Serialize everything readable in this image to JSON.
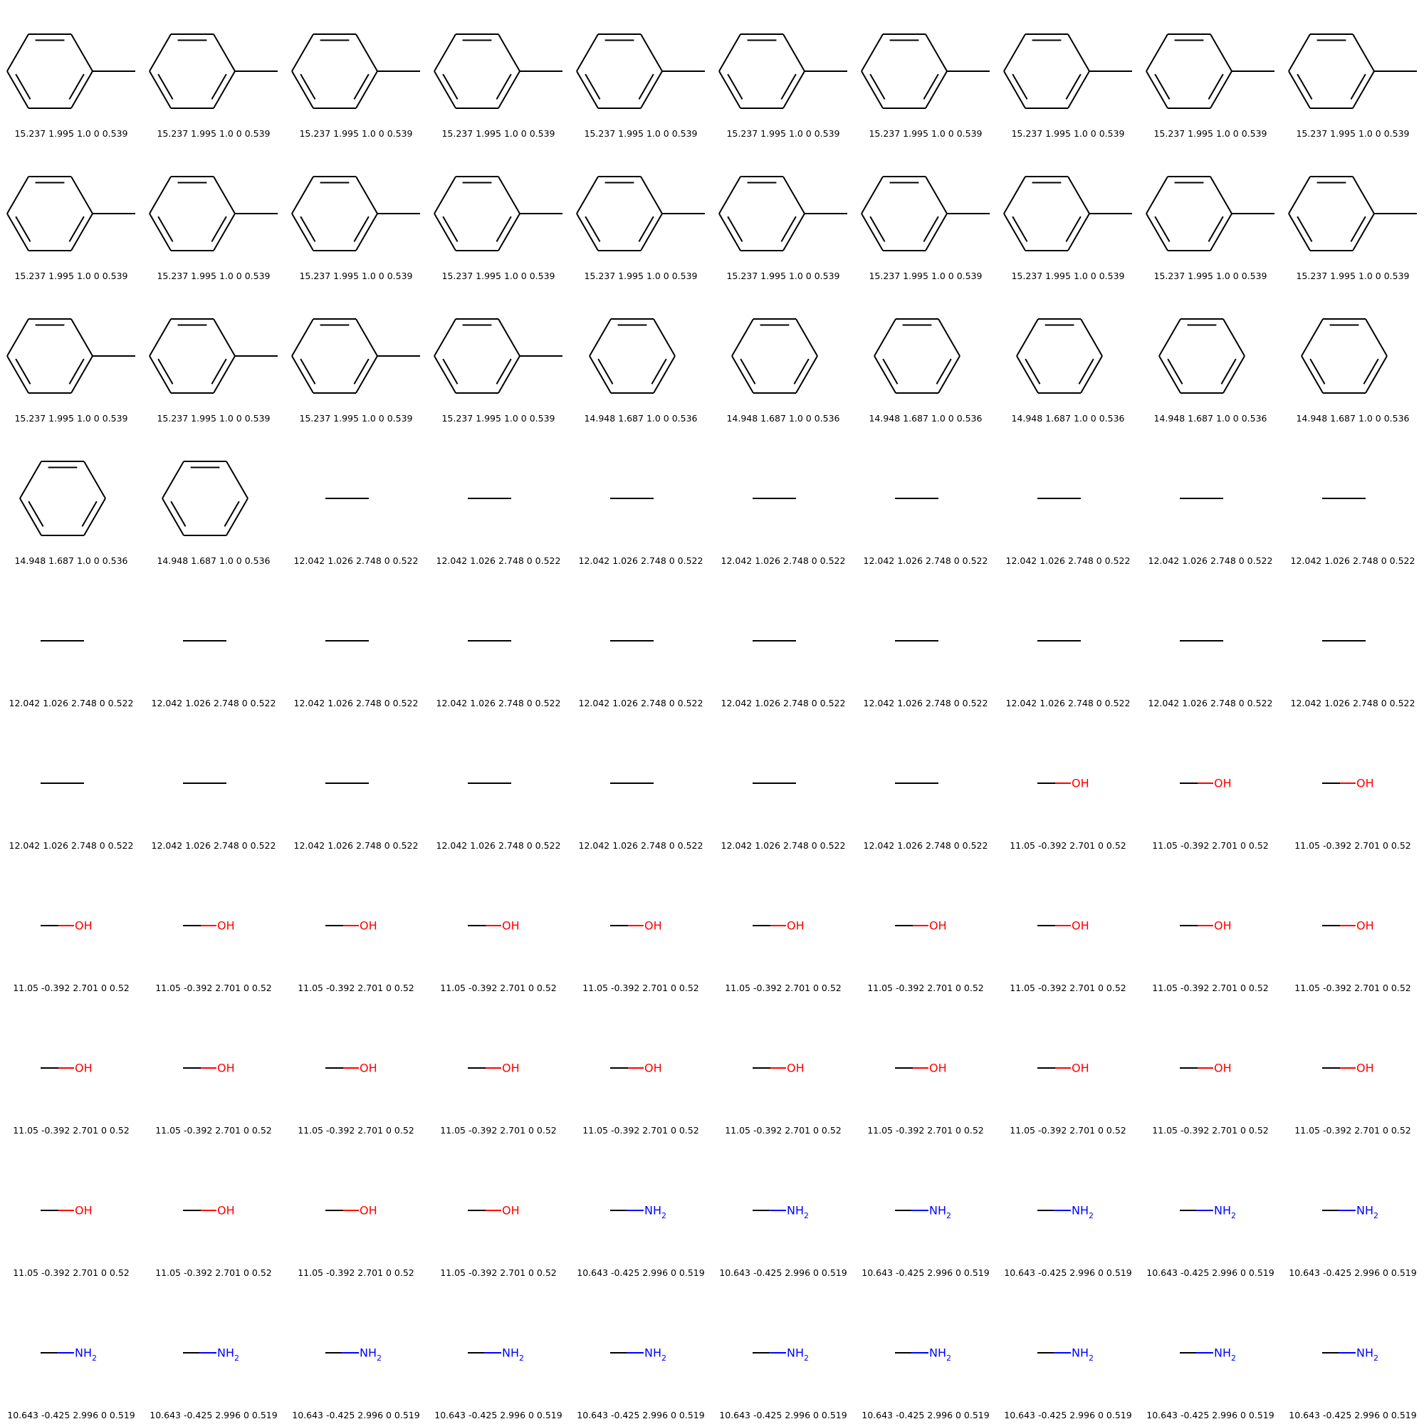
{
  "molecule_types": {
    "toluene": {
      "label": ""
    },
    "benzene": {
      "label": ""
    },
    "ethane": {
      "label": ""
    },
    "methanol": {
      "label": "OH",
      "label_color": "#ff0000"
    },
    "methylamine": {
      "label": "NH",
      "subscript": "2",
      "label_color": "#0000ff"
    }
  },
  "colors": {
    "bond": "#000000",
    "oxygen": "#ff0000",
    "nitrogen": "#0000ff",
    "caption": "#000000"
  },
  "captions": {
    "toluene": "15.237 1.995 1.0 0 0.539",
    "benzene": "14.948 1.687 1.0 0 0.536",
    "ethane": "12.042 1.026 2.748 0 0.522",
    "methanol": "11.05 -0.392 2.701 0 0.52",
    "methylamine": "10.643 -0.425 2.996 0 0.519"
  },
  "cells": [
    {
      "type": "toluene",
      "caption": "15.237 1.995 1.0 0 0.539"
    },
    {
      "type": "toluene",
      "caption": "15.237 1.995 1.0 0 0.539"
    },
    {
      "type": "toluene",
      "caption": "15.237 1.995 1.0 0 0.539"
    },
    {
      "type": "toluene",
      "caption": "15.237 1.995 1.0 0 0.539"
    },
    {
      "type": "toluene",
      "caption": "15.237 1.995 1.0 0 0.539"
    },
    {
      "type": "toluene",
      "caption": "15.237 1.995 1.0 0 0.539"
    },
    {
      "type": "toluene",
      "caption": "15.237 1.995 1.0 0 0.539"
    },
    {
      "type": "toluene",
      "caption": "15.237 1.995 1.0 0 0.539"
    },
    {
      "type": "toluene",
      "caption": "15.237 1.995 1.0 0 0.539"
    },
    {
      "type": "toluene",
      "caption": "15.237 1.995 1.0 0 0.539"
    },
    {
      "type": "toluene",
      "caption": "15.237 1.995 1.0 0 0.539"
    },
    {
      "type": "toluene",
      "caption": "15.237 1.995 1.0 0 0.539"
    },
    {
      "type": "toluene",
      "caption": "15.237 1.995 1.0 0 0.539"
    },
    {
      "type": "toluene",
      "caption": "15.237 1.995 1.0 0 0.539"
    },
    {
      "type": "toluene",
      "caption": "15.237 1.995 1.0 0 0.539"
    },
    {
      "type": "toluene",
      "caption": "15.237 1.995 1.0 0 0.539"
    },
    {
      "type": "toluene",
      "caption": "15.237 1.995 1.0 0 0.539"
    },
    {
      "type": "toluene",
      "caption": "15.237 1.995 1.0 0 0.539"
    },
    {
      "type": "toluene",
      "caption": "15.237 1.995 1.0 0 0.539"
    },
    {
      "type": "toluene",
      "caption": "15.237 1.995 1.0 0 0.539"
    },
    {
      "type": "toluene",
      "caption": "15.237 1.995 1.0 0 0.539"
    },
    {
      "type": "toluene",
      "caption": "15.237 1.995 1.0 0 0.539"
    },
    {
      "type": "toluene",
      "caption": "15.237 1.995 1.0 0 0.539"
    },
    {
      "type": "toluene",
      "caption": "15.237 1.995 1.0 0 0.539"
    },
    {
      "type": "benzene",
      "caption": "14.948 1.687 1.0 0 0.536"
    },
    {
      "type": "benzene",
      "caption": "14.948 1.687 1.0 0 0.536"
    },
    {
      "type": "benzene",
      "caption": "14.948 1.687 1.0 0 0.536"
    },
    {
      "type": "benzene",
      "caption": "14.948 1.687 1.0 0 0.536"
    },
    {
      "type": "benzene",
      "caption": "14.948 1.687 1.0 0 0.536"
    },
    {
      "type": "benzene",
      "caption": "14.948 1.687 1.0 0 0.536"
    },
    {
      "type": "benzene",
      "caption": "14.948 1.687 1.0 0 0.536"
    },
    {
      "type": "benzene",
      "caption": "14.948 1.687 1.0 0 0.536"
    },
    {
      "type": "ethane",
      "caption": "12.042 1.026 2.748 0 0.522"
    },
    {
      "type": "ethane",
      "caption": "12.042 1.026 2.748 0 0.522"
    },
    {
      "type": "ethane",
      "caption": "12.042 1.026 2.748 0 0.522"
    },
    {
      "type": "ethane",
      "caption": "12.042 1.026 2.748 0 0.522"
    },
    {
      "type": "ethane",
      "caption": "12.042 1.026 2.748 0 0.522"
    },
    {
      "type": "ethane",
      "caption": "12.042 1.026 2.748 0 0.522"
    },
    {
      "type": "ethane",
      "caption": "12.042 1.026 2.748 0 0.522"
    },
    {
      "type": "ethane",
      "caption": "12.042 1.026 2.748 0 0.522"
    },
    {
      "type": "ethane",
      "caption": "12.042 1.026 2.748 0 0.522"
    },
    {
      "type": "ethane",
      "caption": "12.042 1.026 2.748 0 0.522"
    },
    {
      "type": "ethane",
      "caption": "12.042 1.026 2.748 0 0.522"
    },
    {
      "type": "ethane",
      "caption": "12.042 1.026 2.748 0 0.522"
    },
    {
      "type": "ethane",
      "caption": "12.042 1.026 2.748 0 0.522"
    },
    {
      "type": "ethane",
      "caption": "12.042 1.026 2.748 0 0.522"
    },
    {
      "type": "ethane",
      "caption": "12.042 1.026 2.748 0 0.522"
    },
    {
      "type": "ethane",
      "caption": "12.042 1.026 2.748 0 0.522"
    },
    {
      "type": "ethane",
      "caption": "12.042 1.026 2.748 0 0.522"
    },
    {
      "type": "ethane",
      "caption": "12.042 1.026 2.748 0 0.522"
    },
    {
      "type": "ethane",
      "caption": "12.042 1.026 2.748 0 0.522"
    },
    {
      "type": "ethane",
      "caption": "12.042 1.026 2.748 0 0.522"
    },
    {
      "type": "ethane",
      "caption": "12.042 1.026 2.748 0 0.522"
    },
    {
      "type": "ethane",
      "caption": "12.042 1.026 2.748 0 0.522"
    },
    {
      "type": "ethane",
      "caption": "12.042 1.026 2.748 0 0.522"
    },
    {
      "type": "ethane",
      "caption": "12.042 1.026 2.748 0 0.522"
    },
    {
      "type": "ethane",
      "caption": "12.042 1.026 2.748 0 0.522"
    },
    {
      "type": "methanol",
      "caption": "11.05 -0.392 2.701 0 0.52"
    },
    {
      "type": "methanol",
      "caption": "11.05 -0.392 2.701 0 0.52"
    },
    {
      "type": "methanol",
      "caption": "11.05 -0.392 2.701 0 0.52"
    },
    {
      "type": "methanol",
      "caption": "11.05 -0.392 2.701 0 0.52"
    },
    {
      "type": "methanol",
      "caption": "11.05 -0.392 2.701 0 0.52"
    },
    {
      "type": "methanol",
      "caption": "11.05 -0.392 2.701 0 0.52"
    },
    {
      "type": "methanol",
      "caption": "11.05 -0.392 2.701 0 0.52"
    },
    {
      "type": "methanol",
      "caption": "11.05 -0.392 2.701 0 0.52"
    },
    {
      "type": "methanol",
      "caption": "11.05 -0.392 2.701 0 0.52"
    },
    {
      "type": "methanol",
      "caption": "11.05 -0.392 2.701 0 0.52"
    },
    {
      "type": "methanol",
      "caption": "11.05 -0.392 2.701 0 0.52"
    },
    {
      "type": "methanol",
      "caption": "11.05 -0.392 2.701 0 0.52"
    },
    {
      "type": "methanol",
      "caption": "11.05 -0.392 2.701 0 0.52"
    },
    {
      "type": "methanol",
      "caption": "11.05 -0.392 2.701 0 0.52"
    },
    {
      "type": "methanol",
      "caption": "11.05 -0.392 2.701 0 0.52"
    },
    {
      "type": "methanol",
      "caption": "11.05 -0.392 2.701 0 0.52"
    },
    {
      "type": "methanol",
      "caption": "11.05 -0.392 2.701 0 0.52"
    },
    {
      "type": "methanol",
      "caption": "11.05 -0.392 2.701 0 0.52"
    },
    {
      "type": "methanol",
      "caption": "11.05 -0.392 2.701 0 0.52"
    },
    {
      "type": "methanol",
      "caption": "11.05 -0.392 2.701 0 0.52"
    },
    {
      "type": "methanol",
      "caption": "11.05 -0.392 2.701 0 0.52"
    },
    {
      "type": "methanol",
      "caption": "11.05 -0.392 2.701 0 0.52"
    },
    {
      "type": "methanol",
      "caption": "11.05 -0.392 2.701 0 0.52"
    },
    {
      "type": "methanol",
      "caption": "11.05 -0.392 2.701 0 0.52"
    },
    {
      "type": "methanol",
      "caption": "11.05 -0.392 2.701 0 0.52"
    },
    {
      "type": "methanol",
      "caption": "11.05 -0.392 2.701 0 0.52"
    },
    {
      "type": "methanol",
      "caption": "11.05 -0.392 2.701 0 0.52"
    },
    {
      "type": "methylamine",
      "caption": "10.643 -0.425 2.996 0 0.519"
    },
    {
      "type": "methylamine",
      "caption": "10.643 -0.425 2.996 0 0.519"
    },
    {
      "type": "methylamine",
      "caption": "10.643 -0.425 2.996 0 0.519"
    },
    {
      "type": "methylamine",
      "caption": "10.643 -0.425 2.996 0 0.519"
    },
    {
      "type": "methylamine",
      "caption": "10.643 -0.425 2.996 0 0.519"
    },
    {
      "type": "methylamine",
      "caption": "10.643 -0.425 2.996 0 0.519"
    },
    {
      "type": "methylamine",
      "caption": "10.643 -0.425 2.996 0 0.519"
    },
    {
      "type": "methylamine",
      "caption": "10.643 -0.425 2.996 0 0.519"
    },
    {
      "type": "methylamine",
      "caption": "10.643 -0.425 2.996 0 0.519"
    },
    {
      "type": "methylamine",
      "caption": "10.643 -0.425 2.996 0 0.519"
    },
    {
      "type": "methylamine",
      "caption": "10.643 -0.425 2.996 0 0.519"
    },
    {
      "type": "methylamine",
      "caption": "10.643 -0.425 2.996 0 0.519"
    },
    {
      "type": "methylamine",
      "caption": "10.643 -0.425 2.996 0 0.519"
    },
    {
      "type": "methylamine",
      "caption": "10.643 -0.425 2.996 0 0.519"
    },
    {
      "type": "methylamine",
      "caption": "10.643 -0.425 2.996 0 0.519"
    },
    {
      "type": "methylamine",
      "caption": "10.643 -0.425 2.996 0 0.519"
    }
  ]
}
